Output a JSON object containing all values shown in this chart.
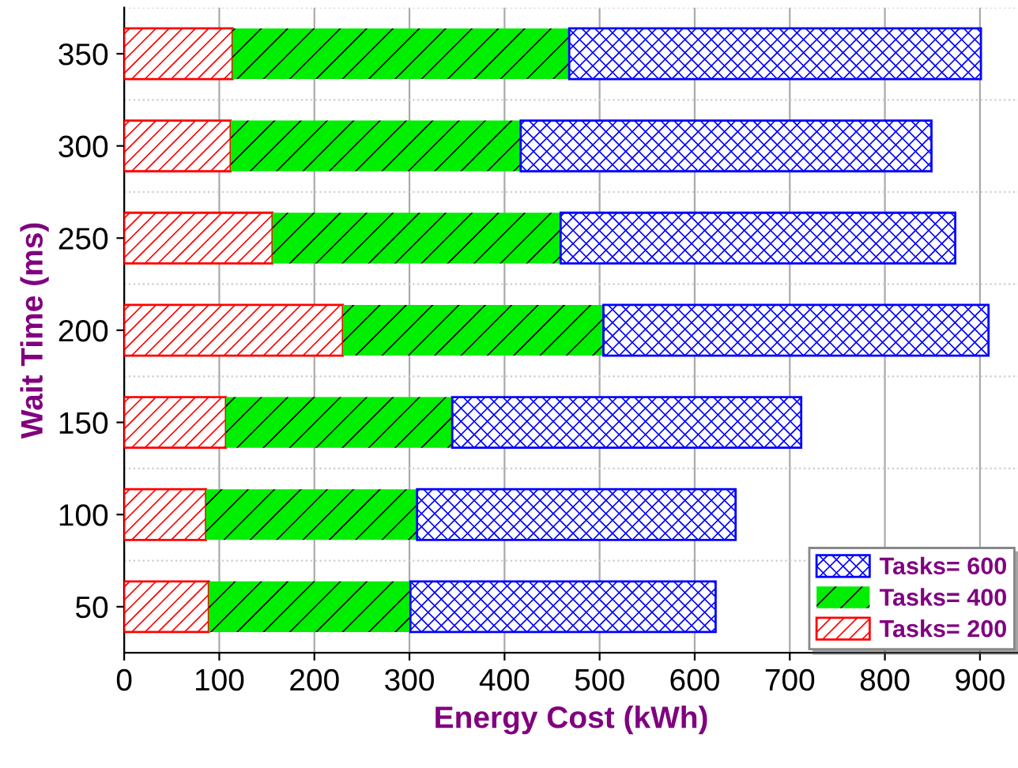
{
  "chart_data": {
    "type": "bar",
    "orientation": "horizontal",
    "stacked": true,
    "xlabel": "Energy Cost (kWh)",
    "ylabel": "Wait Time (ms)",
    "categories": [
      "350",
      "300",
      "250",
      "200",
      "150",
      "100",
      "50"
    ],
    "series": [
      {
        "name": "Tasks= 200",
        "color": "#ff0000",
        "values": [
          114,
          112,
          156,
          230,
          107,
          86,
          89
        ]
      },
      {
        "name": "Tasks= 400",
        "color": "#00ee00",
        "values": [
          354,
          305,
          303,
          274,
          238,
          222,
          212
        ]
      },
      {
        "name": "Tasks= 600",
        "color": "#0000ff",
        "values": [
          433,
          432,
          415,
          405,
          367,
          335,
          321
        ]
      }
    ],
    "xlim": [
      0,
      940
    ],
    "xticks": [
      0,
      100,
      200,
      300,
      400,
      500,
      600,
      700,
      800,
      900
    ],
    "grid": "x",
    "legend": "bottom right"
  }
}
